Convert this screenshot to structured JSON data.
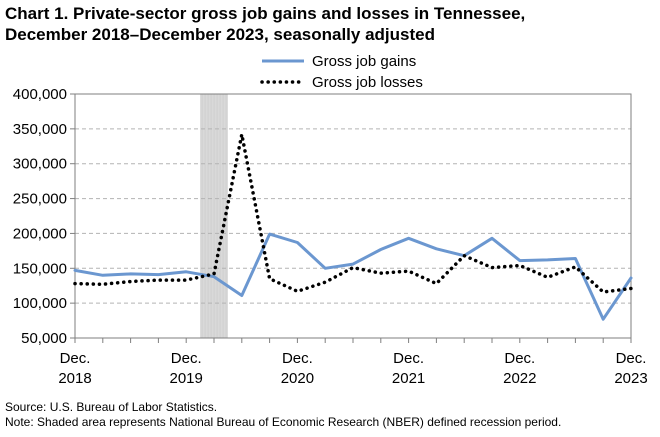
{
  "chart_data": {
    "type": "line",
    "title_line1": "Chart 1. Private-sector gross job gains and losses in Tennessee,",
    "title_line2": "December 2018–December 2023, seasonally adjusted",
    "xlabel": "",
    "ylabel": "",
    "ylim": [
      50000,
      400000
    ],
    "yticks": [
      {
        "value": 50000,
        "label": "50,000"
      },
      {
        "value": 100000,
        "label": "100,000"
      },
      {
        "value": 150000,
        "label": "150,000"
      },
      {
        "value": 200000,
        "label": "200,000"
      },
      {
        "value": 250000,
        "label": "250,000"
      },
      {
        "value": 300000,
        "label": "300,000"
      },
      {
        "value": 350000,
        "label": "350,000"
      },
      {
        "value": 400000,
        "label": "400,000"
      }
    ],
    "grid": true,
    "x_count": 21,
    "categories": [
      "Dec 2018",
      "Mar 2019",
      "Jun 2019",
      "Sep 2019",
      "Dec 2019",
      "Mar 2020",
      "Jun 2020",
      "Sep 2020",
      "Dec 2020",
      "Mar 2021",
      "Jun 2021",
      "Sep 2021",
      "Dec 2021",
      "Mar 2022",
      "Jun 2022",
      "Sep 2022",
      "Dec 2022",
      "Mar 2023",
      "Jun 2023",
      "Sep 2023",
      "Dec 2023"
    ],
    "xticks": [
      {
        "index": 0,
        "line1": "Dec.",
        "line2": "2018"
      },
      {
        "index": 4,
        "line1": "Dec.",
        "line2": "2019"
      },
      {
        "index": 8,
        "line1": "Dec.",
        "line2": "2020"
      },
      {
        "index": 12,
        "line1": "Dec.",
        "line2": "2021"
      },
      {
        "index": 16,
        "line1": "Dec.",
        "line2": "2022"
      },
      {
        "index": 20,
        "line1": "Dec.",
        "line2": "2023"
      }
    ],
    "recession": {
      "start_index": 4.5,
      "end_index": 5.5
    },
    "series": [
      {
        "name": "Gross job gains",
        "style": "solid",
        "color": "#6b97d0",
        "values": [
          147000,
          140000,
          142000,
          141000,
          145000,
          138000,
          111000,
          199000,
          187000,
          150000,
          156000,
          177000,
          193000,
          178000,
          168000,
          193000,
          161000,
          162000,
          164000,
          77000,
          136000
        ]
      },
      {
        "name": "Gross job losses",
        "style": "dotted",
        "color": "#000000",
        "values": [
          128000,
          127000,
          131000,
          133000,
          133000,
          142000,
          342000,
          135000,
          117000,
          130000,
          151000,
          143000,
          146000,
          128000,
          168000,
          151000,
          154000,
          137000,
          152000,
          116000,
          121000
        ]
      }
    ],
    "legend_position": "top-right"
  },
  "notes": {
    "source": "Source: U.S. Bureau of Labor Statistics.",
    "note": "Note: Shaded area represents National Bureau of Economic Research (NBER) defined  recession period."
  }
}
